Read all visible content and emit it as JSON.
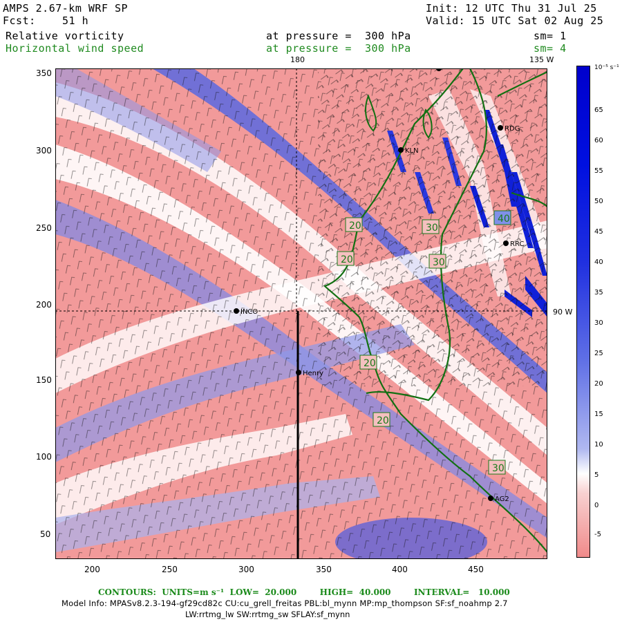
{
  "header": {
    "title_left": "AMPS 2.67-km WRF SP",
    "fcst_left": "Fcst:",
    "fcst_value": "51 h",
    "init": "Init: 12 UTC Thu 31 Jul 25",
    "valid": "Valid: 15 UTC Sat 02 Aug 25",
    "field1": "Relative vorticity",
    "field1_level": "at pressure =  300 hPa",
    "field1_sm": "sm= 1",
    "field2": "Horizontal wind speed",
    "field2_level": "at pressure =  300 hPa",
    "field2_sm": "sm= 4"
  },
  "map_labels": {
    "lon_180": "180",
    "lon_135w": "135 W",
    "lon_90w": "90 W",
    "stations": [
      "INCO",
      "Henry",
      "KLN",
      "RDG",
      "RRC",
      "AG2"
    ],
    "contours": [
      "20",
      "20",
      "30",
      "30",
      "40",
      "20",
      "20",
      "30"
    ]
  },
  "axes": {
    "x_ticks": [
      "200",
      "250",
      "300",
      "350",
      "400",
      "450"
    ],
    "y_ticks": [
      "350",
      "300",
      "250",
      "200",
      "150",
      "100",
      "50"
    ]
  },
  "colorbar": {
    "unit": "10⁻⁵ s⁻¹",
    "labels": [
      "65",
      "60",
      "55",
      "50",
      "45",
      "40",
      "35",
      "30",
      "25",
      "20",
      "15",
      "10",
      "5",
      "0",
      "-5"
    ],
    "colors": {
      "positive": "#1010d0",
      "negative": "#f08080",
      "zero": "#ffffff"
    }
  },
  "footer": {
    "contours": "CONTOURS:  UNITS=m s⁻¹  LOW=  20.000        HIGH=  40.000        INTERVAL=   10.000",
    "model_info": "Model Info: MPASv8.2.3-194-gf29cd82c CU:cu_grell_freitas PBL:bl_mynn MP:mp_thompson SF:sf_noahmp 2.7",
    "model_info2": "LW:rrtmg_lw SW:rrtmg_sw SFLAY:sf_mynn"
  }
}
